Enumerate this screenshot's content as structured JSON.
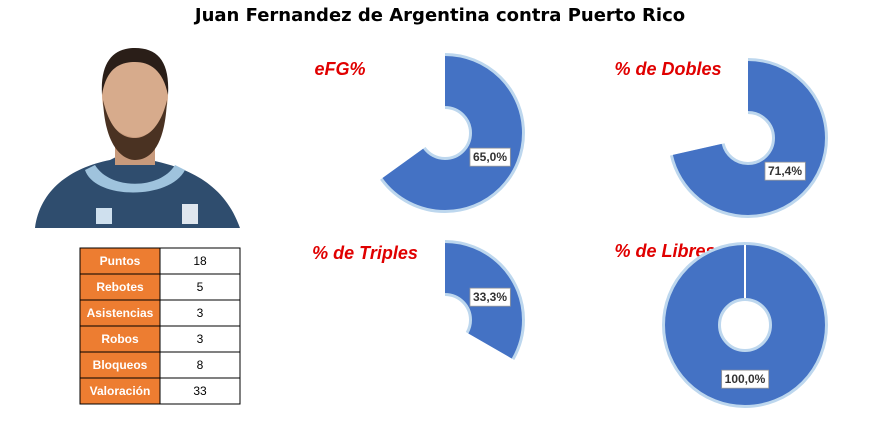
{
  "title": "Juan Fernandez de Argentina contra Puerto Rico",
  "table": {
    "rows": [
      [
        "Puntos",
        18
      ],
      [
        "Rebotes",
        5
      ],
      [
        "Asistencias",
        3
      ],
      [
        "Robos",
        3
      ],
      [
        "Bloqueos",
        8
      ],
      [
        "Valoración",
        33
      ]
    ]
  },
  "chart_data": [
    {
      "type": "pie",
      "title": "eFG%",
      "values": [
        65.0
      ],
      "value_labels": [
        "65,0%"
      ],
      "color": "#4472c4"
    },
    {
      "type": "pie",
      "title": "% de Dobles",
      "values": [
        71.4
      ],
      "value_labels": [
        "71,4%"
      ],
      "color": "#4472c4"
    },
    {
      "type": "pie",
      "title": "% de Triples",
      "values": [
        33.3
      ],
      "value_labels": [
        "33,3%"
      ],
      "color": "#4472c4"
    },
    {
      "type": "pie",
      "title": "% de Libres",
      "values": [
        100.0
      ],
      "value_labels": [
        "100,0%"
      ],
      "color": "#4472c4"
    }
  ]
}
